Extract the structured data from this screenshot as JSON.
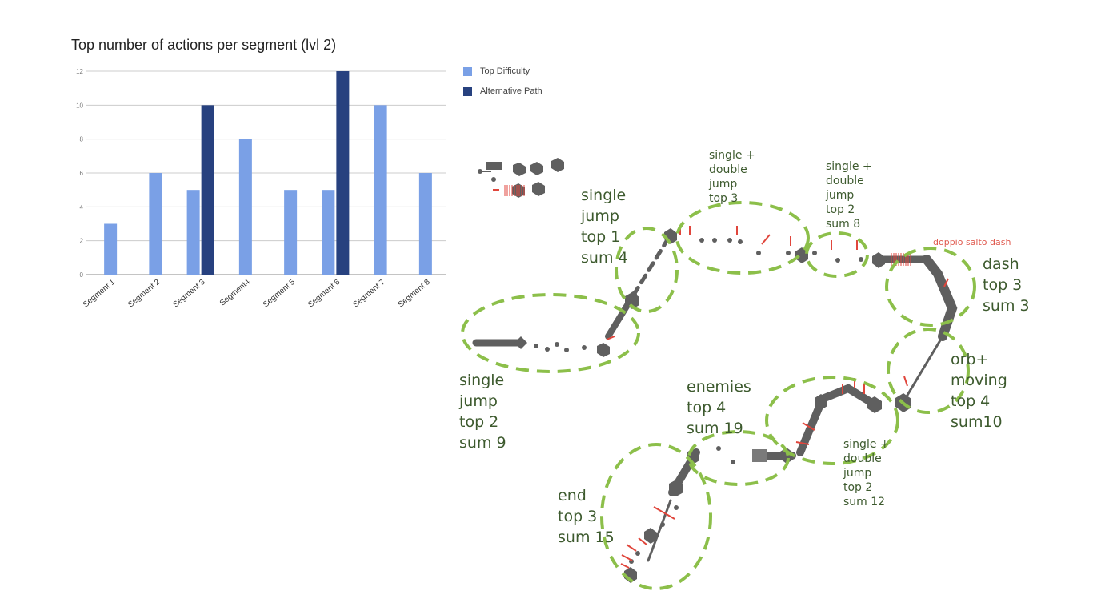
{
  "chart_data": {
    "type": "bar",
    "title": "Top number of actions per segment (lvl 2)",
    "categories": [
      "Segment 1",
      "Segment 2",
      "Segment 3",
      "Segment4",
      "Segment 5",
      "Segment 6",
      "Segment 7",
      "Segment 8"
    ],
    "series": [
      {
        "name": "Top Difficulty",
        "color": "#7aa0e6",
        "values": [
          3,
          6,
          5,
          8,
          5,
          5,
          10,
          6
        ]
      },
      {
        "name": "Alternative Path",
        "color": "#27417f",
        "values": [
          null,
          null,
          10,
          null,
          null,
          12,
          null,
          null
        ]
      }
    ],
    "ylim": [
      0,
      12
    ],
    "yticks": [
      0,
      2,
      4,
      6,
      8,
      10,
      12
    ],
    "grid": true,
    "legend": "right"
  },
  "map": {
    "notes": {
      "seg1": [
        "single",
        "jump",
        "top 2",
        "sum 9"
      ],
      "seg2": [
        "single",
        "jump",
        "top 1",
        "sum 4"
      ],
      "seg3": [
        "single +",
        "double",
        "jump",
        "top 3"
      ],
      "seg4": [
        "single +",
        "double",
        "jump",
        "top 2",
        "sum 8"
      ],
      "seg5": [
        "dash",
        "top 3",
        "sum 3"
      ],
      "seg6": [
        "orb+",
        "moving",
        "top 4",
        "sum10"
      ],
      "seg7": [
        "single +",
        "double",
        "jump",
        "top 2",
        "sum 12"
      ],
      "seg8": [
        "enemies",
        "top 4",
        "sum 19"
      ],
      "seg9": [
        "end",
        "top 3",
        "sum 15"
      ]
    },
    "red_label": "doppio salto dash",
    "outline_color": "#8cbf4a",
    "path_color": "#5f5f5f",
    "arrow_color": "#e0463c"
  }
}
